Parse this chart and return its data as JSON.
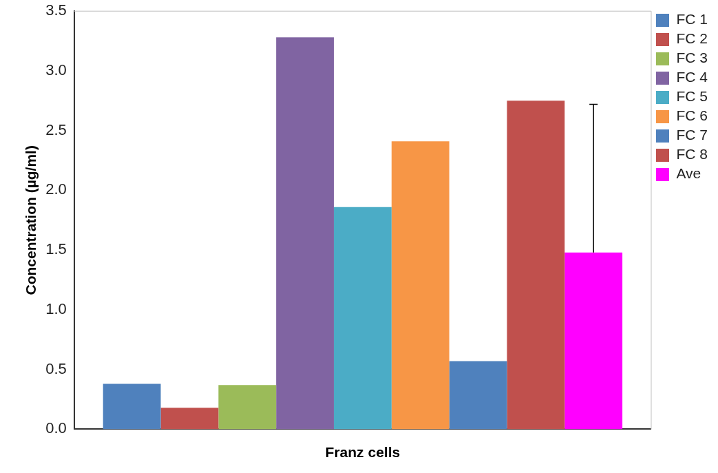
{
  "chart_data": {
    "type": "bar",
    "xlabel": "Franz cells",
    "ylabel": "Concentration (µg/ml)",
    "categories": [
      null
    ],
    "series": [
      {
        "name": "FC 1",
        "color": "#4f81bd",
        "values": [
          0.38
        ]
      },
      {
        "name": "FC 2",
        "color": "#c0504d",
        "values": [
          0.18
        ]
      },
      {
        "name": "FC 3",
        "color": "#9bbb59",
        "values": [
          0.37
        ]
      },
      {
        "name": "FC 4",
        "color": "#8064a2",
        "values": [
          3.28
        ]
      },
      {
        "name": "FC 5",
        "color": "#4bacc6",
        "values": [
          1.86
        ]
      },
      {
        "name": "FC 6",
        "color": "#f79646",
        "values": [
          2.41
        ]
      },
      {
        "name": "FC 7",
        "color": "#4f81bd",
        "values": [
          0.57
        ]
      },
      {
        "name": "FC 8",
        "color": "#c0504d",
        "values": [
          2.75
        ]
      },
      {
        "name": "Ave",
        "color": "#ff00ff",
        "values": [
          1.48
        ],
        "errors": [
          [
            1.48,
            2.72
          ]
        ]
      }
    ],
    "ylim": [
      0,
      3.5
    ],
    "yticks": [
      {
        "value": 0,
        "label": "0.0"
      },
      0.5,
      {
        "value": 1,
        "label": "1.0"
      },
      1.5,
      {
        "value": 2,
        "label": "2.0"
      },
      2.5,
      {
        "value": 3,
        "label": "3.0"
      },
      3.5
    ],
    "grid": false,
    "legend": "right"
  }
}
